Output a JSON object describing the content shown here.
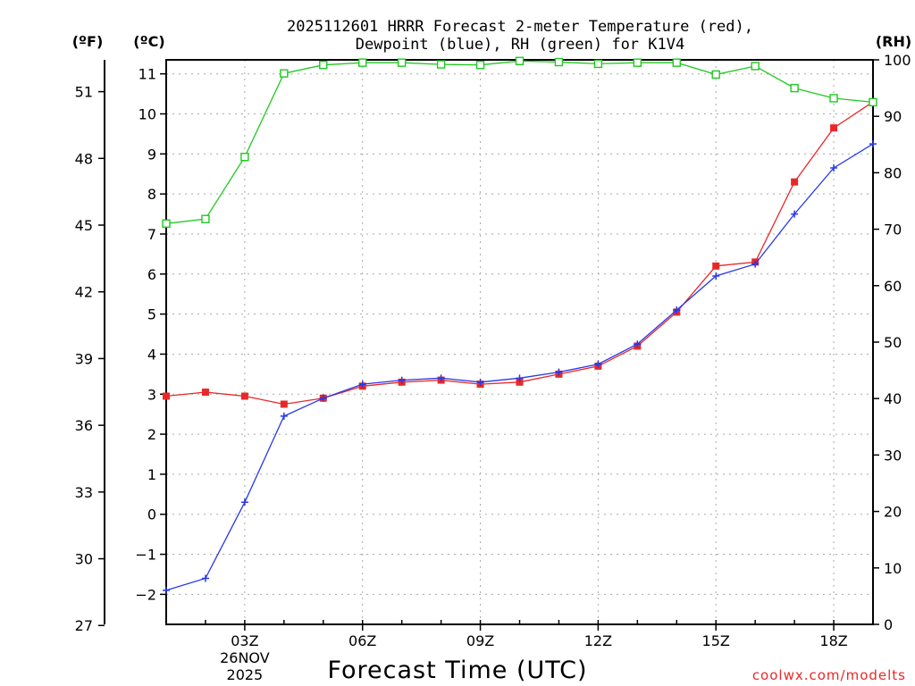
{
  "chart_data": {
    "type": "line",
    "title_line1": "2025112601 HRRR Forecast 2-meter Temperature (red),",
    "title_line2": "Dewpoint (blue), RH (green) for K1V4",
    "xlabel": "Forecast Time (UTC)",
    "credit": "coolwx.com/modelts",
    "units_f": "(ºF)",
    "units_c": "(ºC)",
    "units_rh": "(RH)",
    "x_hours": [
      1,
      2,
      3,
      4,
      5,
      6,
      7,
      8,
      9,
      10,
      11,
      12,
      13,
      14,
      15,
      16,
      17,
      18,
      19
    ],
    "xlim": [
      1,
      19
    ],
    "x_ticks": [
      {
        "hour": 3,
        "label": "03Z",
        "date_line1": "26NOV",
        "date_line2": "2025"
      },
      {
        "hour": 6,
        "label": "06Z"
      },
      {
        "hour": 9,
        "label": "09Z"
      },
      {
        "hour": 12,
        "label": "12Z"
      },
      {
        "hour": 15,
        "label": "15Z"
      },
      {
        "hour": 18,
        "label": "18Z"
      }
    ],
    "ylim_c": [
      -2.75,
      11.35
    ],
    "ylim_rh": [
      0,
      100
    ],
    "c_ticks": [
      -2,
      -1,
      0,
      1,
      2,
      3,
      4,
      5,
      6,
      7,
      8,
      9,
      10,
      11
    ],
    "c_tick_labels": [
      "−2",
      "−1",
      "0",
      "1",
      "2",
      "3",
      "4",
      "5",
      "6",
      "7",
      "8",
      "9",
      "10",
      "11"
    ],
    "f_ticks": [
      27,
      30,
      33,
      36,
      39,
      42,
      45,
      48,
      51
    ],
    "rh_ticks": [
      0,
      10,
      20,
      30,
      40,
      50,
      60,
      70,
      80,
      90,
      100
    ],
    "series": [
      {
        "name": "2-meter Temperature",
        "color": "#e82828",
        "marker": "filled-square",
        "values": [
          2.95,
          3.05,
          2.95,
          2.75,
          2.9,
          3.2,
          3.3,
          3.35,
          3.25,
          3.3,
          3.5,
          3.7,
          4.2,
          5.05,
          6.2,
          6.3,
          8.3,
          9.65,
          10.3
        ]
      },
      {
        "name": "Dewpoint",
        "color": "#2838e8",
        "marker": "plus",
        "values": [
          -1.9,
          -1.6,
          0.3,
          2.45,
          2.9,
          3.25,
          3.35,
          3.4,
          3.3,
          3.4,
          3.55,
          3.75,
          4.25,
          5.1,
          5.95,
          6.25,
          7.5,
          8.65,
          9.25
        ]
      },
      {
        "name": "RH",
        "color": "#20c820",
        "marker": "open-square",
        "axis": "rh",
        "values": [
          71,
          71.8,
          82.8,
          97.6,
          99.1,
          99.5,
          99.5,
          99.2,
          99.1,
          99.8,
          99.6,
          99.3,
          99.5,
          99.5,
          97.4,
          98.9,
          95,
          93.2,
          92.5
        ]
      }
    ]
  }
}
